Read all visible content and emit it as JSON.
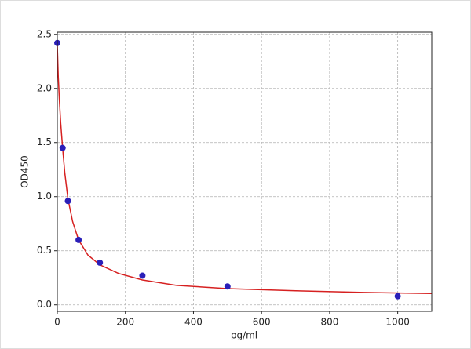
{
  "chart_data": {
    "type": "scatter",
    "xlabel": "pg/ml",
    "ylabel": "OD450",
    "xlim": [
      0,
      1100
    ],
    "ylim": [
      -0.06,
      2.52
    ],
    "xticks": [
      0,
      200,
      400,
      600,
      800,
      1000
    ],
    "yticks": [
      {
        "value": 0,
        "label": "0.0"
      },
      {
        "value": 0.5,
        "label": "0.5"
      },
      {
        "value": 1,
        "label": "1.0"
      },
      {
        "value": 1.5,
        "label": "1.5"
      },
      {
        "value": 2,
        "label": "2.0"
      },
      {
        "value": 2.5,
        "label": "2.5"
      }
    ],
    "grid": true,
    "points": {
      "color": "#2a1fb8",
      "x": [
        0,
        15.6,
        31.25,
        62.5,
        125,
        250,
        500,
        1000
      ],
      "values": [
        2.42,
        1.45,
        0.96,
        0.6,
        0.39,
        0.27,
        0.17,
        0.08
      ]
    },
    "curve": {
      "color": "#d62020",
      "x": [
        0,
        3,
        6,
        10,
        15.6,
        22,
        31.25,
        45,
        62.5,
        90,
        125,
        180,
        250,
        350,
        500,
        700,
        900,
        1100
      ],
      "values": [
        2.4,
        2.1,
        1.9,
        1.68,
        1.45,
        1.22,
        0.98,
        0.77,
        0.6,
        0.46,
        0.37,
        0.29,
        0.23,
        0.18,
        0.15,
        0.13,
        0.115,
        0.105
      ]
    }
  }
}
